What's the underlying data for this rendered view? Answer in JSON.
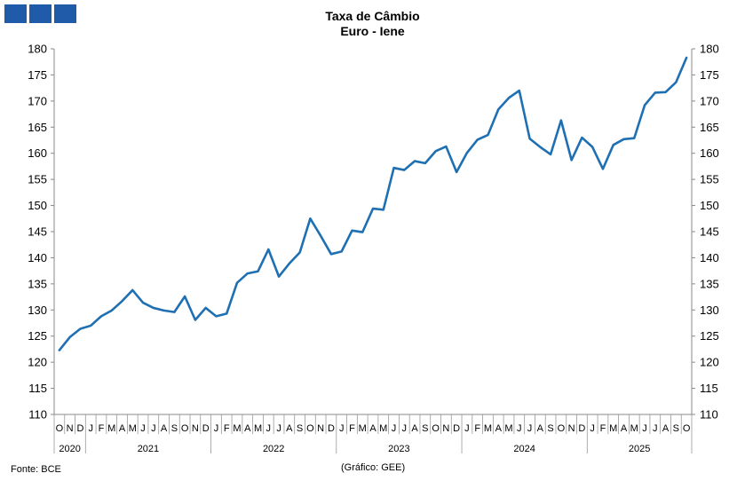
{
  "logo": {
    "color": "#1f5ba8"
  },
  "header": {
    "title_line1": "Taxa de Câmbio",
    "title_line2": "Euro - Iene"
  },
  "footer": {
    "source": "Fonte: BCE",
    "credit": "(Gráfico: GEE)"
  },
  "chart_data": {
    "type": "line",
    "title": "Taxa de Câmbio Euro - Iene",
    "ylim": [
      110,
      180
    ],
    "yticks": [
      110,
      115,
      120,
      125,
      130,
      135,
      140,
      145,
      150,
      155,
      160,
      165,
      170,
      175,
      180
    ],
    "secondary_axis": true,
    "grid": false,
    "line_color": "#1f6fb3",
    "months": [
      "O",
      "N",
      "D",
      "J",
      "F",
      "M",
      "A",
      "M",
      "J",
      "J",
      "A",
      "S",
      "O",
      "N",
      "D",
      "J",
      "F",
      "M",
      "A",
      "M",
      "J",
      "J",
      "A",
      "S",
      "O",
      "N",
      "D",
      "J",
      "F",
      "M",
      "A",
      "M",
      "J",
      "J",
      "A",
      "S",
      "O",
      "N",
      "D",
      "J",
      "F",
      "M",
      "A",
      "M",
      "J",
      "J",
      "A",
      "S",
      "O",
      "N",
      "D",
      "J",
      "F",
      "M",
      "A",
      "M",
      "J",
      "J",
      "A",
      "S",
      "O"
    ],
    "years": [
      {
        "label": "2020",
        "start": 0,
        "end": 2
      },
      {
        "label": "2021",
        "start": 3,
        "end": 14
      },
      {
        "label": "2022",
        "start": 15,
        "end": 26
      },
      {
        "label": "2023",
        "start": 27,
        "end": 38
      },
      {
        "label": "2024",
        "start": 39,
        "end": 50
      },
      {
        "label": "2025",
        "start": 51,
        "end": 60
      }
    ],
    "series": [
      {
        "values": [
          122.3,
          124.8,
          126.4,
          127.0,
          128.8,
          129.9,
          131.7,
          133.8,
          131.4,
          130.4,
          129.9,
          129.6,
          132.6,
          128.1,
          130.4,
          128.8,
          129.3,
          135.2,
          137.0,
          137.4,
          141.6,
          136.4,
          138.9,
          141.0,
          147.5,
          144.2,
          140.7,
          141.2,
          145.2,
          144.9,
          149.4,
          149.2,
          157.2,
          156.8,
          158.5,
          158.1,
          160.4,
          161.3,
          156.4,
          160.1,
          162.6,
          163.5,
          168.4,
          170.6,
          172.0,
          162.8,
          161.2,
          159.8,
          166.3,
          158.7,
          163.0,
          161.2,
          157.0,
          161.6,
          162.7,
          162.9,
          169.2,
          171.6,
          171.7,
          173.6,
          178.3
        ]
      }
    ]
  }
}
